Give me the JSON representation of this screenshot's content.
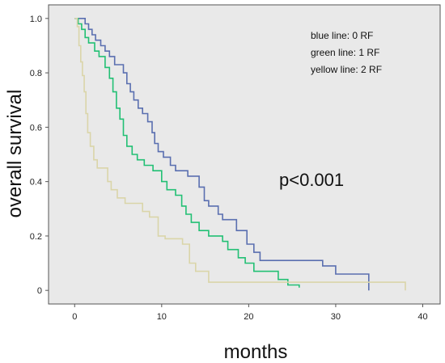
{
  "chart_data": {
    "type": "line",
    "step": true,
    "xlabel": "months",
    "ylabel": "overall survival",
    "xlim": [
      -3,
      42
    ],
    "ylim": [
      -0.05,
      1.05
    ],
    "xticks": [
      0,
      10,
      20,
      30,
      40
    ],
    "yticks": [
      0,
      0.2,
      0.4,
      0.6,
      0.8,
      1.0
    ],
    "ytick_labels": [
      "0",
      "0.2",
      "0.4",
      "0.6",
      "0.8",
      "1.0"
    ],
    "background_color": "#e9e9e9",
    "legend_position": "top-right",
    "legend_lines": [
      "blue line: 0 RF",
      "green line: 1 RF",
      "yellow line: 2 RF"
    ],
    "annotation": "p<0.001",
    "series": [
      {
        "name": "0 RF",
        "color": "#5a6fb0",
        "points": [
          [
            0,
            1.0
          ],
          [
            1.2,
            1.0
          ],
          [
            1.2,
            0.98
          ],
          [
            1.6,
            0.98
          ],
          [
            1.6,
            0.96
          ],
          [
            2.0,
            0.96
          ],
          [
            2.0,
            0.94
          ],
          [
            2.4,
            0.94
          ],
          [
            2.4,
            0.92
          ],
          [
            3.0,
            0.92
          ],
          [
            3.0,
            0.9
          ],
          [
            3.5,
            0.9
          ],
          [
            3.5,
            0.88
          ],
          [
            4.0,
            0.88
          ],
          [
            4.0,
            0.86
          ],
          [
            4.6,
            0.86
          ],
          [
            4.6,
            0.83
          ],
          [
            5.6,
            0.83
          ],
          [
            5.6,
            0.8
          ],
          [
            6.0,
            0.8
          ],
          [
            6.0,
            0.76
          ],
          [
            6.4,
            0.76
          ],
          [
            6.4,
            0.73
          ],
          [
            6.8,
            0.73
          ],
          [
            6.8,
            0.7
          ],
          [
            7.3,
            0.7
          ],
          [
            7.3,
            0.67
          ],
          [
            7.8,
            0.67
          ],
          [
            7.8,
            0.65
          ],
          [
            8.4,
            0.65
          ],
          [
            8.4,
            0.62
          ],
          [
            8.9,
            0.62
          ],
          [
            8.9,
            0.58
          ],
          [
            9.2,
            0.58
          ],
          [
            9.2,
            0.54
          ],
          [
            9.6,
            0.54
          ],
          [
            9.6,
            0.51
          ],
          [
            10.2,
            0.51
          ],
          [
            10.2,
            0.49
          ],
          [
            11.0,
            0.49
          ],
          [
            11.0,
            0.46
          ],
          [
            11.6,
            0.46
          ],
          [
            11.6,
            0.44
          ],
          [
            13.0,
            0.44
          ],
          [
            13.0,
            0.42
          ],
          [
            14.3,
            0.42
          ],
          [
            14.3,
            0.38
          ],
          [
            14.9,
            0.38
          ],
          [
            14.9,
            0.33
          ],
          [
            15.4,
            0.33
          ],
          [
            15.4,
            0.31
          ],
          [
            16.5,
            0.31
          ],
          [
            16.5,
            0.28
          ],
          [
            17.0,
            0.28
          ],
          [
            17.0,
            0.26
          ],
          [
            18.6,
            0.26
          ],
          [
            18.6,
            0.22
          ],
          [
            19.8,
            0.22
          ],
          [
            19.8,
            0.17
          ],
          [
            20.6,
            0.17
          ],
          [
            20.6,
            0.14
          ],
          [
            21.3,
            0.14
          ],
          [
            21.3,
            0.11
          ],
          [
            28.5,
            0.11
          ],
          [
            28.5,
            0.09
          ],
          [
            30.0,
            0.09
          ],
          [
            30.0,
            0.06
          ],
          [
            33.8,
            0.06
          ],
          [
            33.8,
            0.0
          ]
        ]
      },
      {
        "name": "1 RF",
        "color": "#22c074",
        "points": [
          [
            0,
            1.0
          ],
          [
            0.4,
            1.0
          ],
          [
            0.4,
            0.98
          ],
          [
            0.8,
            0.98
          ],
          [
            0.8,
            0.96
          ],
          [
            1.2,
            0.96
          ],
          [
            1.2,
            0.93
          ],
          [
            1.6,
            0.93
          ],
          [
            1.6,
            0.91
          ],
          [
            2.3,
            0.91
          ],
          [
            2.3,
            0.88
          ],
          [
            2.8,
            0.88
          ],
          [
            2.8,
            0.86
          ],
          [
            3.5,
            0.86
          ],
          [
            3.5,
            0.82
          ],
          [
            4.0,
            0.82
          ],
          [
            4.0,
            0.78
          ],
          [
            4.4,
            0.78
          ],
          [
            4.4,
            0.73
          ],
          [
            4.8,
            0.73
          ],
          [
            4.8,
            0.67
          ],
          [
            5.2,
            0.67
          ],
          [
            5.2,
            0.63
          ],
          [
            5.6,
            0.63
          ],
          [
            5.6,
            0.57
          ],
          [
            6.0,
            0.57
          ],
          [
            6.0,
            0.53
          ],
          [
            6.6,
            0.53
          ],
          [
            6.6,
            0.5
          ],
          [
            7.2,
            0.5
          ],
          [
            7.2,
            0.48
          ],
          [
            8.0,
            0.48
          ],
          [
            8.0,
            0.46
          ],
          [
            9.0,
            0.46
          ],
          [
            9.0,
            0.44
          ],
          [
            10.0,
            0.44
          ],
          [
            10.0,
            0.4
          ],
          [
            10.6,
            0.4
          ],
          [
            10.6,
            0.37
          ],
          [
            11.6,
            0.37
          ],
          [
            11.6,
            0.35
          ],
          [
            12.3,
            0.35
          ],
          [
            12.3,
            0.31
          ],
          [
            12.8,
            0.31
          ],
          [
            12.8,
            0.28
          ],
          [
            13.4,
            0.28
          ],
          [
            13.4,
            0.25
          ],
          [
            14.3,
            0.25
          ],
          [
            14.3,
            0.22
          ],
          [
            15.4,
            0.22
          ],
          [
            15.4,
            0.2
          ],
          [
            17.0,
            0.2
          ],
          [
            17.0,
            0.18
          ],
          [
            17.6,
            0.18
          ],
          [
            17.6,
            0.15
          ],
          [
            18.8,
            0.15
          ],
          [
            18.8,
            0.12
          ],
          [
            19.6,
            0.12
          ],
          [
            19.6,
            0.1
          ],
          [
            20.6,
            0.1
          ],
          [
            20.6,
            0.07
          ],
          [
            23.4,
            0.07
          ],
          [
            23.4,
            0.04
          ],
          [
            24.5,
            0.04
          ],
          [
            24.5,
            0.02
          ],
          [
            25.8,
            0.02
          ],
          [
            25.8,
            0.01
          ]
        ]
      },
      {
        "name": "2 RF",
        "color": "#dad5a9",
        "points": [
          [
            0,
            1.0
          ],
          [
            0.3,
            1.0
          ],
          [
            0.3,
            0.97
          ],
          [
            0.5,
            0.97
          ],
          [
            0.5,
            0.9
          ],
          [
            0.7,
            0.9
          ],
          [
            0.7,
            0.84
          ],
          [
            0.9,
            0.84
          ],
          [
            0.9,
            0.79
          ],
          [
            1.1,
            0.79
          ],
          [
            1.1,
            0.73
          ],
          [
            1.3,
            0.73
          ],
          [
            1.3,
            0.65
          ],
          [
            1.5,
            0.65
          ],
          [
            1.5,
            0.58
          ],
          [
            1.8,
            0.58
          ],
          [
            1.8,
            0.53
          ],
          [
            2.2,
            0.53
          ],
          [
            2.2,
            0.48
          ],
          [
            2.6,
            0.48
          ],
          [
            2.6,
            0.45
          ],
          [
            3.8,
            0.45
          ],
          [
            3.8,
            0.4
          ],
          [
            4.2,
            0.4
          ],
          [
            4.2,
            0.37
          ],
          [
            4.9,
            0.37
          ],
          [
            4.9,
            0.34
          ],
          [
            5.8,
            0.34
          ],
          [
            5.8,
            0.32
          ],
          [
            7.8,
            0.32
          ],
          [
            7.8,
            0.29
          ],
          [
            8.6,
            0.29
          ],
          [
            8.6,
            0.27
          ],
          [
            9.6,
            0.27
          ],
          [
            9.6,
            0.2
          ],
          [
            10.4,
            0.2
          ],
          [
            10.4,
            0.19
          ],
          [
            12.4,
            0.19
          ],
          [
            12.4,
            0.17
          ],
          [
            13.2,
            0.17
          ],
          [
            13.2,
            0.1
          ],
          [
            13.9,
            0.1
          ],
          [
            13.9,
            0.07
          ],
          [
            15.4,
            0.07
          ],
          [
            15.4,
            0.03
          ],
          [
            38.0,
            0.03
          ],
          [
            38.0,
            0.0
          ]
        ]
      }
    ]
  }
}
